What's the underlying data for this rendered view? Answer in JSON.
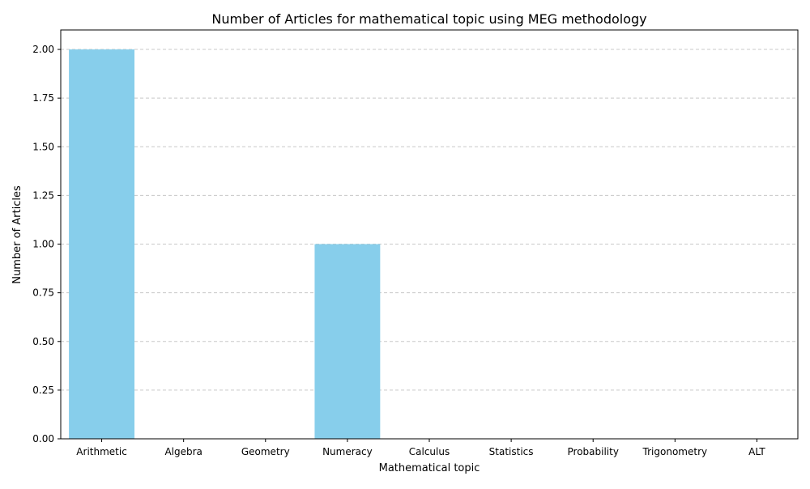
{
  "chart_data": {
    "type": "bar",
    "title": "Number of Articles for mathematical topic using MEG methodology",
    "xlabel": "Mathematical topic",
    "ylabel": "Number of Articles",
    "categories": [
      "Arithmetic",
      "Algebra",
      "Geometry",
      "Numeracy",
      "Calculus",
      "Statistics",
      "Probability",
      "Trigonometry",
      "ALT"
    ],
    "values": [
      2,
      0,
      0,
      1,
      0,
      0,
      0,
      0,
      0
    ],
    "ylim": [
      0,
      2.1
    ],
    "yticks": [
      "0.00",
      "0.25",
      "0.50",
      "0.75",
      "1.00",
      "1.25",
      "1.50",
      "1.75",
      "2.00"
    ],
    "grid": "y-dashed",
    "bar_color": "#87ceeb",
    "grid_color": "#c8c8c8"
  }
}
